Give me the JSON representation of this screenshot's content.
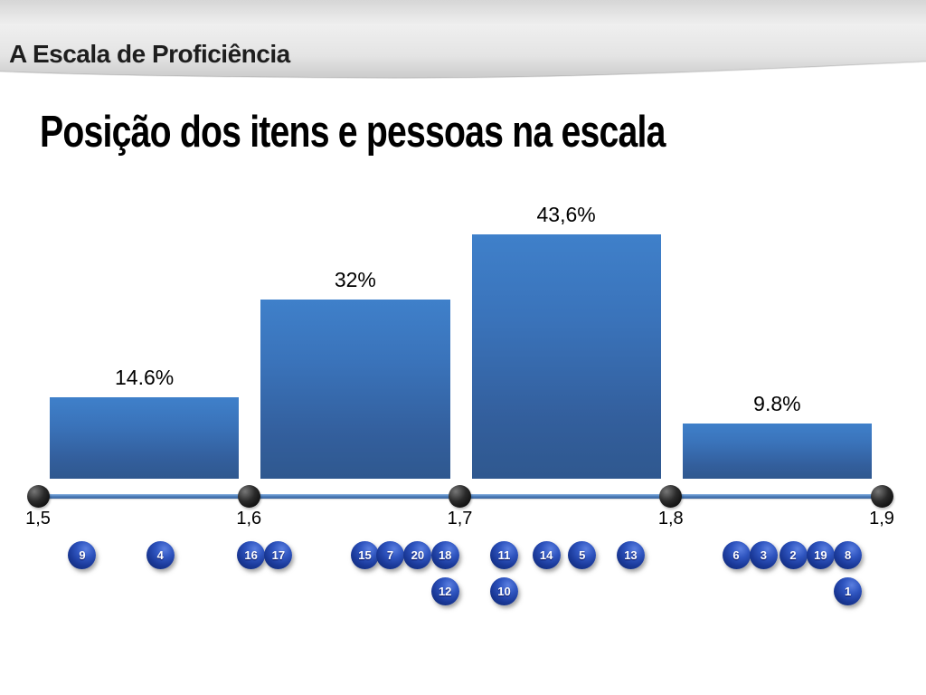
{
  "slide": {
    "header_title": "A Escala de Proficiência",
    "main_title": "Posição dos itens e pessoas na escala"
  },
  "chart_data": {
    "type": "bar",
    "title": "Posição dos itens e pessoas na escala",
    "description": "Distribution of people across proficiency-scale intervals (bars, % of people) with numbered item balls placed at their positions on the scale",
    "categories": [
      "1,5-1,6",
      "1,6-1,7",
      "1,7-1,8",
      "1,8-1,9"
    ],
    "values": [
      14.6,
      32,
      43.6,
      9.8
    ],
    "bar_labels": [
      "14.6%",
      "32%",
      "43,6%",
      "9.8%"
    ],
    "x_ticks": [
      "1,5",
      "1,6",
      "1,7",
      "1,8",
      "1,9"
    ],
    "x_range": [
      1.5,
      1.9
    ],
    "ylim": [
      0,
      48
    ],
    "grid": false,
    "legend": false,
    "items_on_scale": [
      {
        "label": "9",
        "value": 1.521,
        "row": 0
      },
      {
        "label": "4",
        "value": 1.558,
        "row": 0
      },
      {
        "label": "16",
        "value": 1.601,
        "row": 0
      },
      {
        "label": "17",
        "value": 1.614,
        "row": 0
      },
      {
        "label": "15",
        "value": 1.655,
        "row": 0
      },
      {
        "label": "7",
        "value": 1.667,
        "row": 0
      },
      {
        "label": "20",
        "value": 1.68,
        "row": 0
      },
      {
        "label": "18",
        "value": 1.693,
        "row": 0
      },
      {
        "label": "11",
        "value": 1.721,
        "row": 0
      },
      {
        "label": "14",
        "value": 1.741,
        "row": 0
      },
      {
        "label": "5",
        "value": 1.758,
        "row": 0
      },
      {
        "label": "13",
        "value": 1.781,
        "row": 0
      },
      {
        "label": "6",
        "value": 1.831,
        "row": 0
      },
      {
        "label": "3",
        "value": 1.844,
        "row": 0
      },
      {
        "label": "2",
        "value": 1.858,
        "row": 0
      },
      {
        "label": "19",
        "value": 1.871,
        "row": 0
      },
      {
        "label": "8",
        "value": 1.884,
        "row": 0
      },
      {
        "label": "12",
        "value": 1.693,
        "row": 1
      },
      {
        "label": "10",
        "value": 1.721,
        "row": 1
      },
      {
        "label": "1",
        "value": 1.884,
        "row": 1
      }
    ]
  },
  "colors": {
    "bar_top": "#3f80ca",
    "bar_bottom": "#2f588f",
    "axis_line": "#4f81bd",
    "tick_dot": "#000000",
    "item_ball": "#1b3a9a",
    "header_band": "#e3e3e3",
    "text": "#000000"
  }
}
